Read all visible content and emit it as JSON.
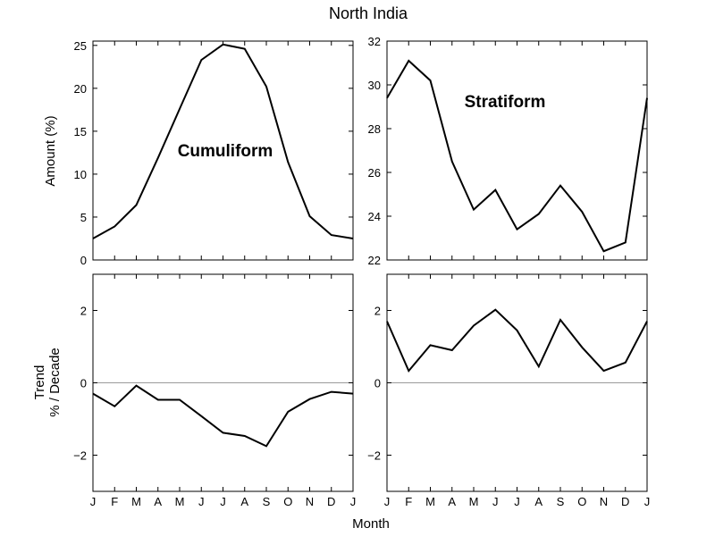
{
  "figure": {
    "title": "North India",
    "xlabel": "Month",
    "ylabel_top": "Amount (%)",
    "ylabel_bottom_line1": "Trend",
    "ylabel_bottom_line2": "% / Decade"
  },
  "chart_data": [
    {
      "type": "line",
      "label": "Cumuliform",
      "categories": [
        "J",
        "F",
        "M",
        "A",
        "M",
        "J",
        "J",
        "A",
        "S",
        "O",
        "N",
        "D",
        "J"
      ],
      "values": [
        2.5,
        3.9,
        6.4,
        11.9,
        17.6,
        23.3,
        25.1,
        24.6,
        20.2,
        11.4,
        5.1,
        2.9,
        2.5
      ],
      "ylim": [
        0,
        25.5
      ],
      "yticks": [
        0,
        5,
        10,
        15,
        20,
        25
      ]
    },
    {
      "type": "line",
      "label": "Stratiform",
      "categories": [
        "J",
        "F",
        "M",
        "A",
        "M",
        "J",
        "J",
        "A",
        "S",
        "O",
        "N",
        "D",
        "J"
      ],
      "values": [
        29.4,
        31.1,
        30.2,
        26.5,
        24.3,
        25.2,
        23.4,
        24.1,
        25.4,
        24.2,
        22.4,
        22.8,
        29.4
      ],
      "ylim": [
        22,
        32
      ],
      "yticks": [
        22,
        24,
        26,
        28,
        30,
        32
      ]
    },
    {
      "type": "line",
      "categories": [
        "J",
        "F",
        "M",
        "A",
        "M",
        "J",
        "J",
        "A",
        "S",
        "O",
        "N",
        "D",
        "J"
      ],
      "values": [
        -0.3,
        -0.65,
        -0.08,
        -0.47,
        -0.47,
        -0.92,
        -1.38,
        -1.47,
        -1.75,
        -0.8,
        -0.45,
        -0.25,
        -0.3
      ],
      "ylim": [
        -3,
        3
      ],
      "yticks": [
        -2,
        0,
        2
      ],
      "zero_line": true
    },
    {
      "type": "line",
      "categories": [
        "J",
        "F",
        "M",
        "A",
        "M",
        "J",
        "J",
        "A",
        "S",
        "O",
        "N",
        "D",
        "J"
      ],
      "values": [
        1.7,
        0.33,
        1.04,
        0.9,
        1.58,
        2.02,
        1.45,
        0.45,
        1.74,
        0.98,
        0.33,
        0.56,
        1.7
      ],
      "ylim": [
        -3,
        3
      ],
      "yticks": [
        -2,
        0,
        2
      ],
      "zero_line": true
    }
  ]
}
